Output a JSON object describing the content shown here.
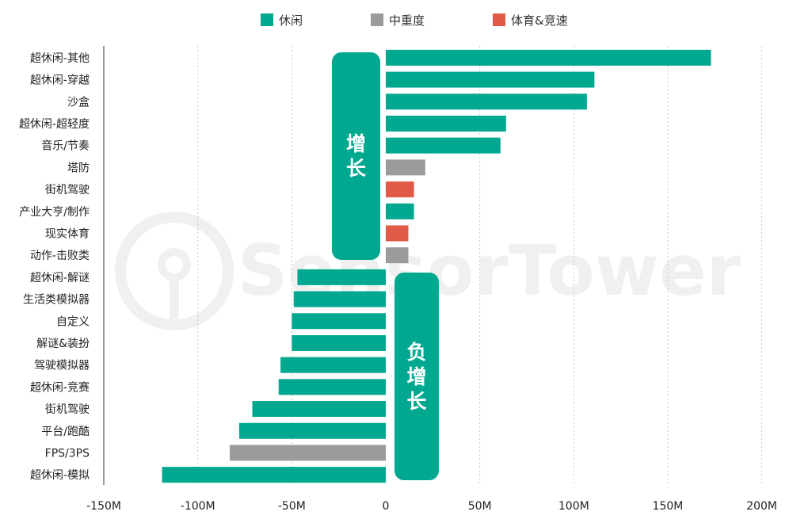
{
  "legend": [
    {
      "label": "休闲",
      "color": "#00a88f"
    },
    {
      "label": "中重度",
      "color": "#9b9b9b"
    },
    {
      "label": "体育&竞速",
      "color": "#e05a47"
    }
  ],
  "callouts": {
    "growth": "增长",
    "negative": "负增长",
    "color": "#00a88f"
  },
  "watermark": "SensorTower",
  "chart_data": {
    "type": "bar",
    "orientation": "horizontal",
    "categories": [
      "超休闲-其他",
      "超休闲-穿越",
      "沙盒",
      "超休闲-超轻度",
      "音乐/节奏",
      "塔防",
      "街机驾驶",
      "产业大亨/制作",
      "现实体育",
      "动作-击败类",
      "超休闲-解谜",
      "生活类模拟器",
      "自定义",
      "解谜&装扮",
      "驾驶模拟器",
      "超休闲-竞赛",
      "街机驾驶",
      "平台/跑酷",
      "FPS/3PS",
      "超休闲-模拟"
    ],
    "values": [
      173,
      111,
      107,
      64,
      61,
      21,
      15,
      15,
      12,
      12,
      -47,
      -49,
      -50,
      -50,
      -56,
      -57,
      -71,
      -78,
      -83,
      -119
    ],
    "groups": [
      "休闲",
      "休闲",
      "休闲",
      "休闲",
      "休闲",
      "中重度",
      "体育&竞速",
      "休闲",
      "体育&竞速",
      "中重度",
      "休闲",
      "休闲",
      "休闲",
      "休闲",
      "休闲",
      "休闲",
      "休闲",
      "休闲",
      "中重度",
      "休闲"
    ],
    "xticks": [
      "-150M",
      "-100M",
      "-50M",
      "0",
      "50M",
      "100M",
      "150M",
      "200M"
    ],
    "xlim": [
      -150,
      200
    ],
    "grid": "vertical dotted",
    "legend_position": "top"
  }
}
